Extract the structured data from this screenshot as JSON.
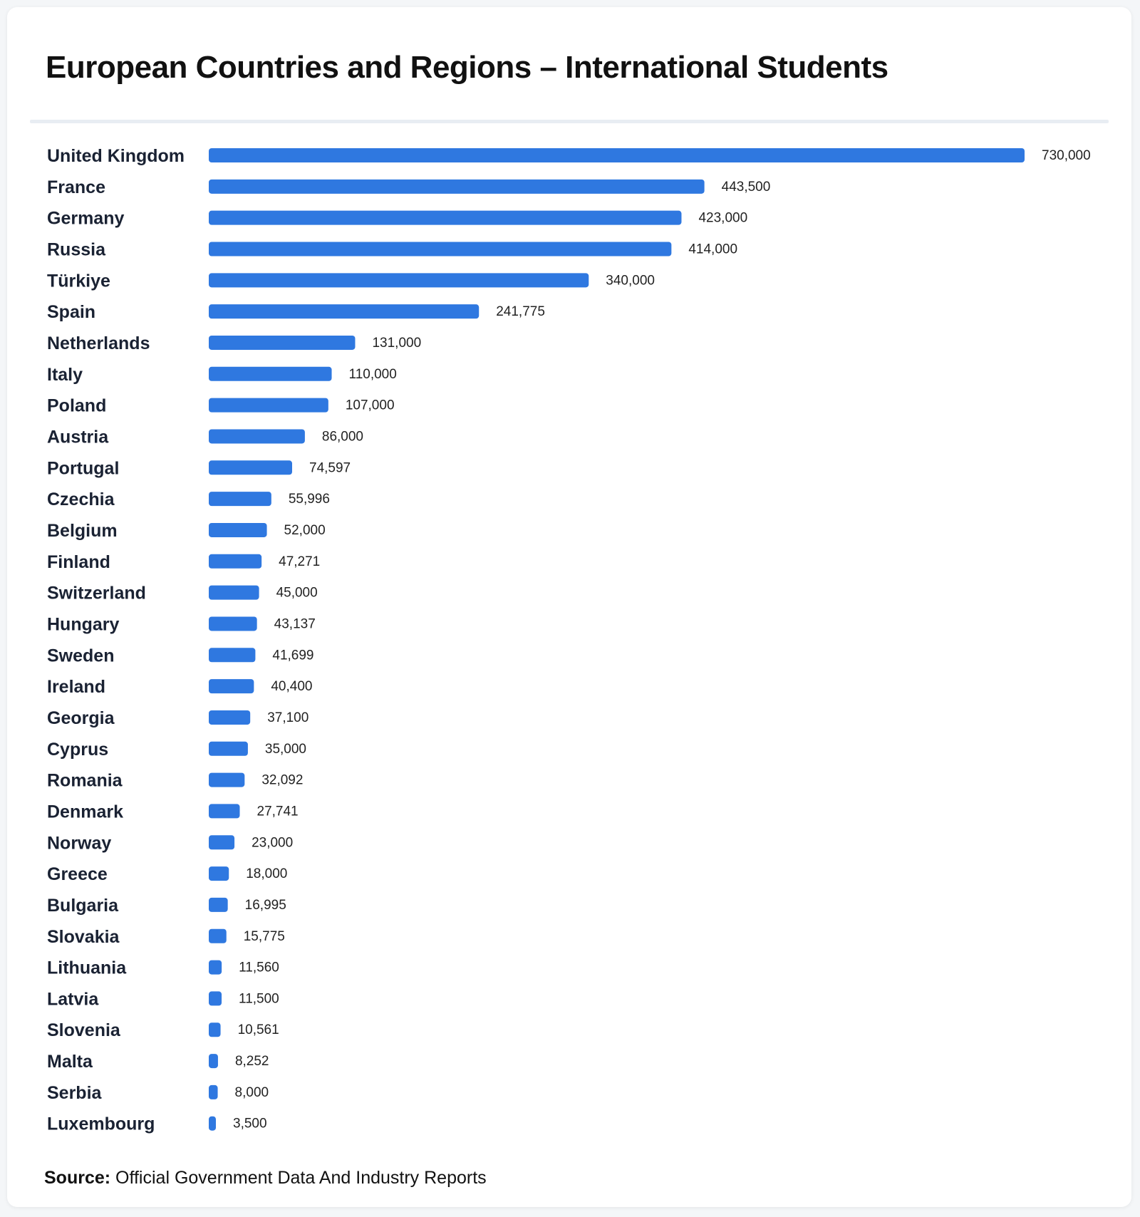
{
  "header": {
    "title": "European Countries and Regions – International Students"
  },
  "footer": {
    "source_label": "Source:",
    "source_text": "Official Government Data And Industry Reports"
  },
  "colors": {
    "bar": "#2f78e0",
    "label": "#1a2233",
    "value": "#222222"
  },
  "chart_data": {
    "type": "bar",
    "orientation": "horizontal",
    "title": "European Countries and Regions – International Students",
    "categories": [
      "United Kingdom",
      "France",
      "Germany",
      "Russia",
      "Türkiye",
      "Spain",
      "Netherlands",
      "Italy",
      "Poland",
      "Austria",
      "Portugal",
      "Czechia",
      "Belgium",
      "Finland",
      "Switzerland",
      "Hungary",
      "Sweden",
      "Ireland",
      "Georgia",
      "Cyprus",
      "Romania",
      "Denmark",
      "Norway",
      "Greece",
      "Bulgaria",
      "Slovakia",
      "Lithuania",
      "Latvia",
      "Slovenia",
      "Malta",
      "Serbia",
      "Luxembourg"
    ],
    "values": [
      730000,
      443500,
      423000,
      414000,
      340000,
      241775,
      131000,
      110000,
      107000,
      86000,
      74597,
      55996,
      52000,
      47271,
      45000,
      43137,
      41699,
      40400,
      37100,
      35000,
      32092,
      27741,
      23000,
      18000,
      16995,
      15775,
      11560,
      11500,
      10561,
      8252,
      8000,
      3500
    ],
    "value_labels": [
      "730,000",
      "443,500",
      "423,000",
      "414,000",
      "340,000",
      "241,775",
      "131,000",
      "110,000",
      "107,000",
      "86,000",
      "74,597",
      "55,996",
      "52,000",
      "47,271",
      "45,000",
      "43,137",
      "41,699",
      "40,400",
      "37,100",
      "35,000",
      "32,092",
      "27,741",
      "23,000",
      "18,000",
      "16,995",
      "15,775",
      "11,560",
      "11,500",
      "10,561",
      "8,252",
      "8,000",
      "3,500"
    ],
    "xlabel": "",
    "ylabel": "",
    "grid": false,
    "legend": "none"
  }
}
